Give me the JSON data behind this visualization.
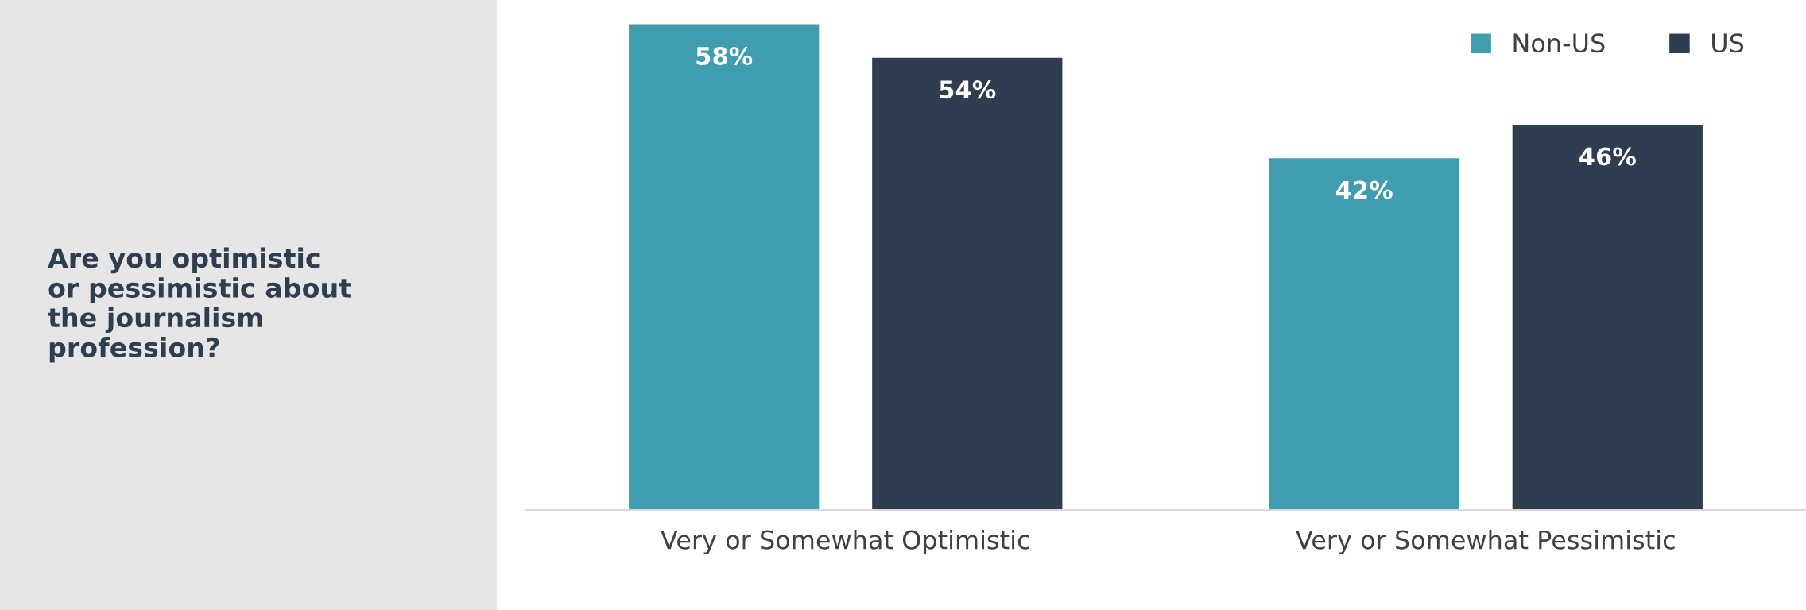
{
  "chart_data": {
    "type": "bar",
    "title": "Are you optimistic\nor pessimistic about\nthe journalism\nprofession?",
    "categories": [
      "Very or Somewhat Optimistic",
      "Very or Somewhat Pessimistic"
    ],
    "series": [
      {
        "name": "Non-US",
        "color": "#3f9daf",
        "values": [
          58,
          42
        ],
        "value_labels": [
          "58%",
          "42%"
        ]
      },
      {
        "name": "US",
        "color": "#2e3d4f",
        "values": [
          54,
          46
        ],
        "value_labels": [
          "54%",
          "46%"
        ]
      }
    ],
    "legend": "top right",
    "grid": false,
    "tick_labels": "x"
  }
}
